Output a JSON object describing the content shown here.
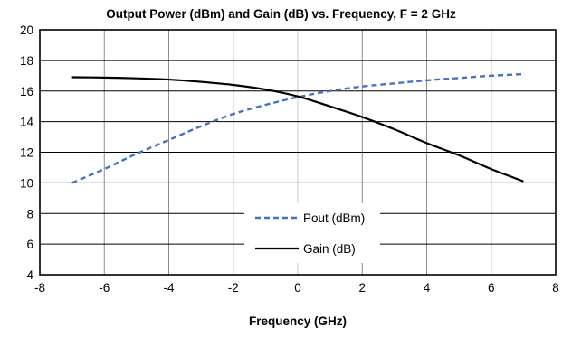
{
  "chart_data": {
    "type": "line",
    "title": "Output Power (dBm) and Gain (dB) vs. Frequency, F = 2 GHz",
    "xlabel": "Frequency (GHz)",
    "ylabel": "",
    "xlim": [
      -8,
      8
    ],
    "ylim": [
      4,
      20
    ],
    "xticks": [
      -8,
      -6,
      -4,
      -2,
      0,
      2,
      4,
      6,
      8
    ],
    "yticks": [
      4,
      6,
      8,
      10,
      12,
      14,
      16,
      18,
      20
    ],
    "grid": true,
    "legend_position": "center",
    "series": [
      {
        "name": "Pout (dBm)",
        "color": "#4472c4",
        "style": "dashed",
        "x": [
          -7,
          -6,
          -5,
          -4,
          -3,
          -2,
          -1,
          0,
          1,
          2,
          3,
          4,
          5,
          6,
          7
        ],
        "y": [
          10.0,
          10.9,
          11.9,
          12.8,
          13.7,
          14.5,
          15.1,
          15.6,
          16.0,
          16.3,
          16.5,
          16.7,
          16.85,
          17.0,
          17.1
        ]
      },
      {
        "name": "Gain (dB)",
        "color": "#000000",
        "style": "solid",
        "x": [
          -7,
          -6,
          -5,
          -4,
          -3,
          -2,
          -1,
          0,
          1,
          2,
          3,
          4,
          5,
          6,
          7
        ],
        "y": [
          16.9,
          16.88,
          16.83,
          16.75,
          16.6,
          16.4,
          16.1,
          15.65,
          15.0,
          14.3,
          13.5,
          12.6,
          11.8,
          10.9,
          10.1
        ]
      }
    ]
  }
}
